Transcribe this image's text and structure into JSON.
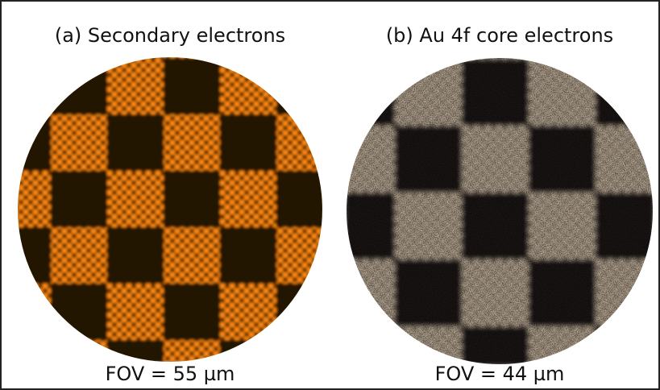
{
  "panels": [
    {
      "title": "(a) Secondary electrons",
      "caption": "FOV = 55 µm"
    },
    {
      "title": "(b) Au 4f core electrons",
      "caption": "FOV = 44 µm"
    }
  ]
}
